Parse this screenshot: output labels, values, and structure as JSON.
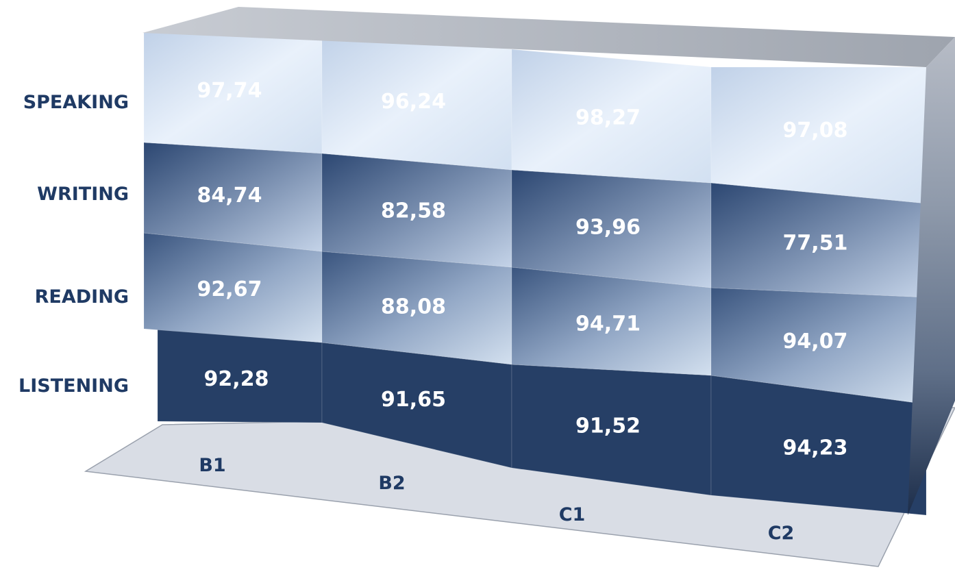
{
  "chart_data": {
    "type": "bar",
    "subtype": "3d-stacked-blocks",
    "categories": [
      "B1",
      "B2",
      "C1",
      "C2"
    ],
    "series": [
      {
        "name": "LISTENING",
        "values": [
          92.28,
          91.65,
          91.52,
          94.23
        ],
        "labels": [
          "92,28",
          "91,65",
          "91,52",
          "94,23"
        ]
      },
      {
        "name": "READING",
        "values": [
          92.67,
          88.08,
          94.71,
          94.07
        ],
        "labels": [
          "92,67",
          "88,08",
          "94,71",
          "94,07"
        ]
      },
      {
        "name": "WRITING",
        "values": [
          84.74,
          82.58,
          93.96,
          77.51
        ],
        "labels": [
          "84,74",
          "82,58",
          "93,96",
          "77,51"
        ]
      },
      {
        "name": "SPEAKING",
        "values": [
          97.74,
          96.24,
          98.27,
          97.08
        ],
        "labels": [
          "97,74",
          "96,24",
          "98,27",
          "97,08"
        ]
      }
    ],
    "legend": "left",
    "grid": false,
    "colors": {
      "label": "#1f3a64",
      "value_text": "#ffffff",
      "listening": "#263f66",
      "side": "#1b2d4b",
      "floor": "#d9dde5",
      "top": "#a3a9b4"
    }
  }
}
